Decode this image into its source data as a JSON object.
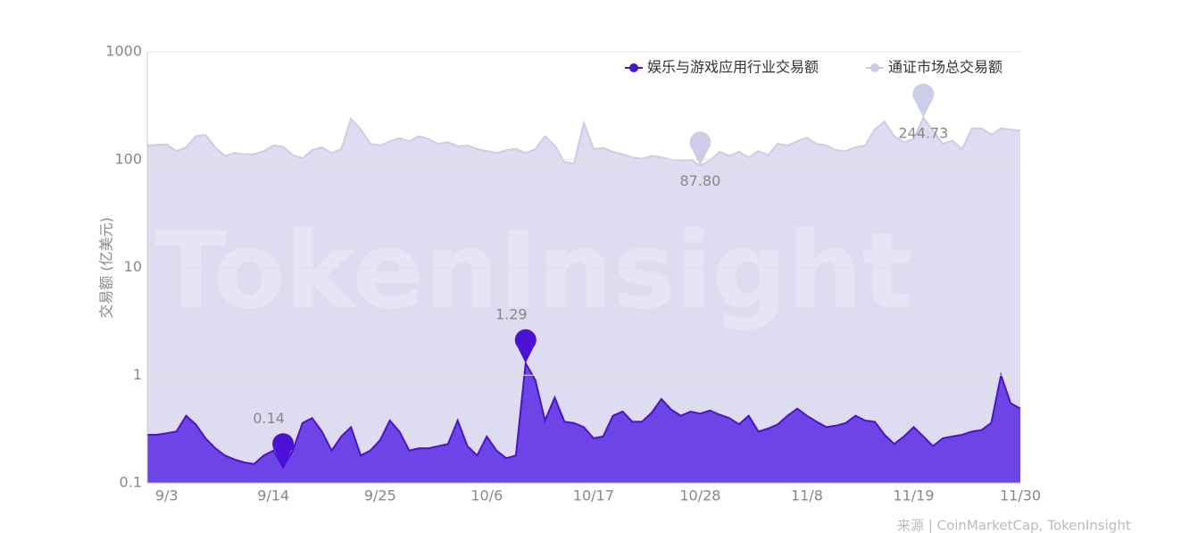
{
  "chart_data": {
    "type": "area",
    "y_label": "交易额 (亿美元)",
    "watermark": "TokenInsight",
    "source": "来源 | CoinMarketCap, TokenInsight",
    "log_scale": true,
    "grid": true,
    "legend": "top-right",
    "ylim": [
      0.1,
      1000
    ],
    "yticks": [
      0.1,
      1,
      10,
      100,
      1000
    ],
    "categories": [
      null,
      null,
      "9/3",
      null,
      null,
      null,
      null,
      null,
      null,
      null,
      null,
      null,
      null,
      "9/14",
      null,
      null,
      null,
      null,
      null,
      null,
      null,
      null,
      null,
      null,
      "9/25",
      null,
      null,
      null,
      null,
      null,
      null,
      null,
      null,
      null,
      null,
      "10/6",
      null,
      null,
      null,
      null,
      null,
      null,
      null,
      null,
      null,
      null,
      "10/17",
      null,
      null,
      null,
      null,
      null,
      null,
      null,
      null,
      null,
      null,
      "10/28",
      null,
      null,
      null,
      null,
      null,
      null,
      null,
      null,
      null,
      null,
      "11/8",
      null,
      null,
      null,
      null,
      null,
      null,
      null,
      null,
      null,
      null,
      "11/19",
      null,
      null,
      null,
      null,
      null,
      null,
      null,
      null,
      null,
      null,
      "11/30"
    ],
    "series": [
      {
        "name": "娱乐与游戏应用行业交易额",
        "color": "#4a12d6",
        "fill": "#6d45e6",
        "values": [
          0.28,
          0.28,
          0.29,
          0.3,
          0.42,
          0.35,
          0.26,
          0.21,
          0.18,
          0.165,
          0.155,
          0.15,
          0.18,
          0.2,
          0.14,
          0.2,
          0.36,
          0.4,
          0.3,
          0.2,
          0.27,
          0.33,
          0.18,
          0.2,
          0.25,
          0.38,
          0.3,
          0.2,
          0.21,
          0.21,
          0.22,
          0.23,
          0.38,
          0.22,
          0.18,
          0.27,
          0.2,
          0.17,
          0.18,
          1.29,
          0.9,
          0.38,
          0.62,
          0.37,
          0.36,
          0.33,
          0.26,
          0.27,
          0.42,
          0.46,
          0.37,
          0.37,
          0.45,
          0.6,
          0.48,
          0.42,
          0.46,
          0.44,
          0.47,
          0.43,
          0.4,
          0.35,
          0.42,
          0.3,
          0.32,
          0.35,
          0.42,
          0.49,
          0.42,
          0.37,
          0.33,
          0.34,
          0.36,
          0.42,
          0.38,
          0.37,
          0.28,
          0.23,
          0.27,
          0.33,
          0.27,
          0.22,
          0.26,
          0.27,
          0.28,
          0.3,
          0.31,
          0.36,
          1.0,
          0.55,
          0.49
        ],
        "mark_points": [
          {
            "type": "min",
            "label": "0.14"
          },
          {
            "type": "max",
            "label": "1.29"
          }
        ]
      },
      {
        "name": "通证市场总交易额",
        "color": "#cdcce9",
        "fill": "#dedcf0",
        "values": [
          135,
          137,
          138,
          120,
          130,
          165,
          170,
          130,
          108,
          115,
          112,
          112,
          120,
          135,
          132,
          110,
          103,
          122,
          130,
          115,
          125,
          240,
          190,
          140,
          135,
          148,
          158,
          148,
          165,
          155,
          140,
          145,
          133,
          135,
          125,
          120,
          115,
          122,
          126,
          115,
          125,
          165,
          135,
          95,
          92,
          220,
          125,
          128,
          118,
          112,
          105,
          102,
          108,
          105,
          100,
          98,
          100,
          87.8,
          98,
          118,
          108,
          118,
          105,
          120,
          110,
          140,
          135,
          148,
          160,
          140,
          135,
          122,
          120,
          130,
          135,
          190,
          225,
          165,
          145,
          155,
          244.73,
          185,
          140,
          150,
          125,
          195,
          195,
          170,
          195,
          190,
          185
        ],
        "mark_points": [
          {
            "type": "min",
            "label": "87.80"
          },
          {
            "type": "max",
            "label": "244.73"
          }
        ]
      }
    ]
  }
}
